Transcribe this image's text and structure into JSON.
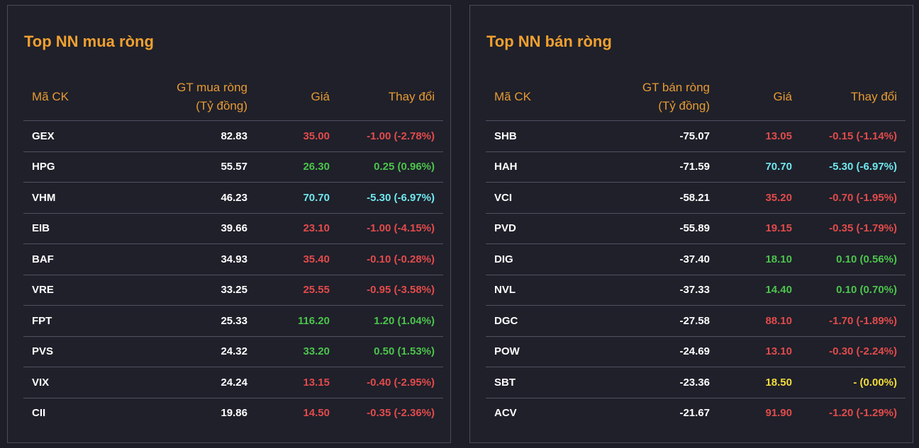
{
  "buy_panel": {
    "title": "Top NN mua ròng",
    "headers": {
      "symbol": "Mã CK",
      "value_line1": "GT mua ròng",
      "value_line2": "(Tỷ đồng)",
      "price": "Giá",
      "change": "Thay đổi"
    },
    "rows": [
      {
        "symbol": "GEX",
        "value": "82.83",
        "price": "35.00",
        "change": "-1.00 (-2.78%)",
        "color": "red"
      },
      {
        "symbol": "HPG",
        "value": "55.57",
        "price": "26.30",
        "change": "0.25 (0.96%)",
        "color": "green"
      },
      {
        "symbol": "VHM",
        "value": "46.23",
        "price": "70.70",
        "change": "-5.30 (-6.97%)",
        "color": "cyan"
      },
      {
        "symbol": "EIB",
        "value": "39.66",
        "price": "23.10",
        "change": "-1.00 (-4.15%)",
        "color": "red"
      },
      {
        "symbol": "BAF",
        "value": "34.93",
        "price": "35.40",
        "change": "-0.10 (-0.28%)",
        "color": "red"
      },
      {
        "symbol": "VRE",
        "value": "33.25",
        "price": "25.55",
        "change": "-0.95 (-3.58%)",
        "color": "red"
      },
      {
        "symbol": "FPT",
        "value": "25.33",
        "price": "116.20",
        "change": "1.20 (1.04%)",
        "color": "green"
      },
      {
        "symbol": "PVS",
        "value": "24.32",
        "price": "33.20",
        "change": "0.50 (1.53%)",
        "color": "green"
      },
      {
        "symbol": "VIX",
        "value": "24.24",
        "price": "13.15",
        "change": "-0.40 (-2.95%)",
        "color": "red"
      },
      {
        "symbol": "CII",
        "value": "19.86",
        "price": "14.50",
        "change": "-0.35 (-2.36%)",
        "color": "red"
      }
    ]
  },
  "sell_panel": {
    "title": "Top NN bán ròng",
    "headers": {
      "symbol": "Mã CK",
      "value_line1": "GT bán ròng",
      "value_line2": "(Tỷ đồng)",
      "price": "Giá",
      "change": "Thay đổi"
    },
    "rows": [
      {
        "symbol": "SHB",
        "value": "-75.07",
        "price": "13.05",
        "change": "-0.15 (-1.14%)",
        "color": "red"
      },
      {
        "symbol": "HAH",
        "value": "-71.59",
        "price": "70.70",
        "change": "-5.30 (-6.97%)",
        "color": "cyan"
      },
      {
        "symbol": "VCI",
        "value": "-58.21",
        "price": "35.20",
        "change": "-0.70 (-1.95%)",
        "color": "red"
      },
      {
        "symbol": "PVD",
        "value": "-55.89",
        "price": "19.15",
        "change": "-0.35 (-1.79%)",
        "color": "red"
      },
      {
        "symbol": "DIG",
        "value": "-37.40",
        "price": "18.10",
        "change": "0.10 (0.56%)",
        "color": "green"
      },
      {
        "symbol": "NVL",
        "value": "-37.33",
        "price": "14.40",
        "change": "0.10 (0.70%)",
        "color": "green"
      },
      {
        "symbol": "DGC",
        "value": "-27.58",
        "price": "88.10",
        "change": "-1.70 (-1.89%)",
        "color": "red"
      },
      {
        "symbol": "POW",
        "value": "-24.69",
        "price": "13.10",
        "change": "-0.30 (-2.24%)",
        "color": "red"
      },
      {
        "symbol": "SBT",
        "value": "-23.36",
        "price": "18.50",
        "change": "- (0.00%)",
        "color": "yellow"
      },
      {
        "symbol": "ACV",
        "value": "-21.67",
        "price": "91.90",
        "change": "-1.20 (-1.29%)",
        "color": "red"
      }
    ]
  },
  "colors": {
    "title": "#f0a030",
    "header": "#e79a32",
    "red": "#e24b4b",
    "green": "#4cc44c",
    "cyan": "#6fe7ee",
    "yellow": "#f2dc3a",
    "background": "#1d1e27"
  }
}
